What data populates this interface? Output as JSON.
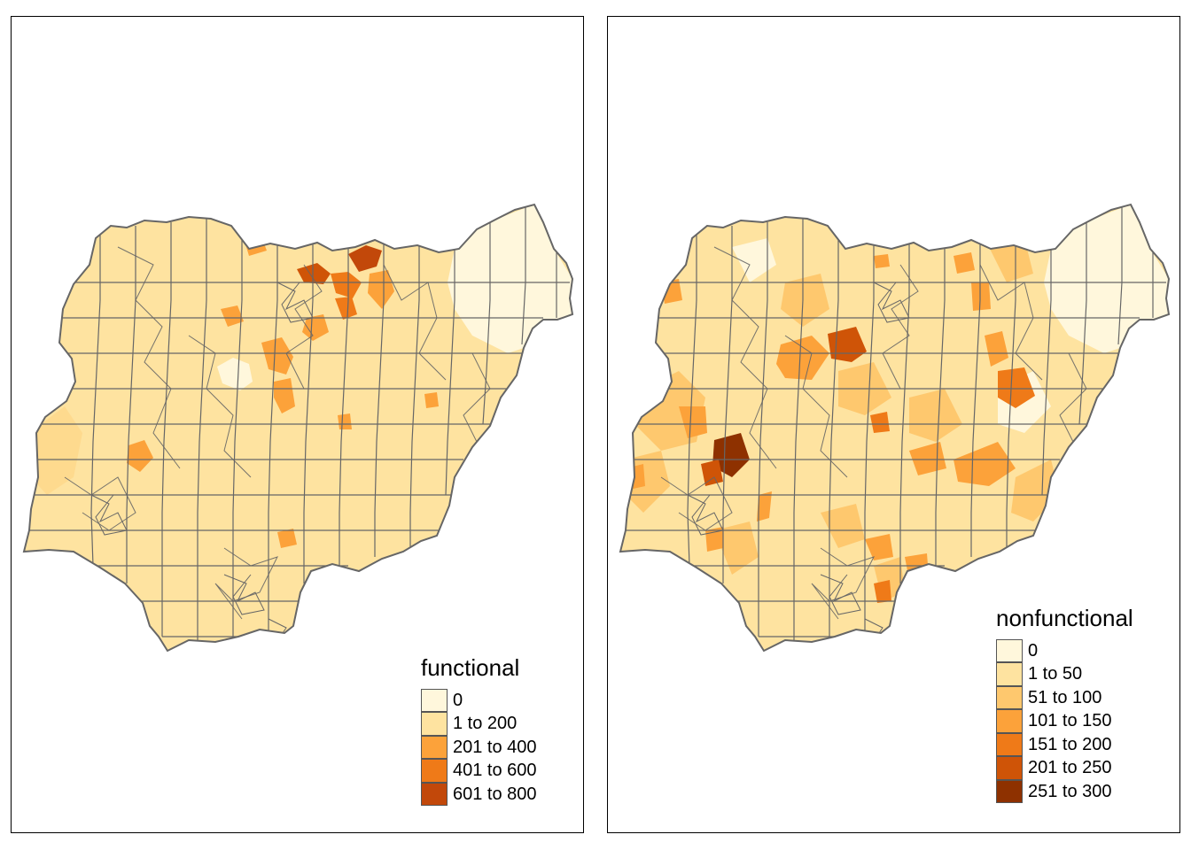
{
  "colors": {
    "outline": "#666666",
    "c0": "#fff7dc",
    "c1": "#fee3a0",
    "c2": "#fec86e",
    "c3": "#fca23a",
    "c4": "#ef7a18",
    "c5": "#cf5407",
    "c6": "#8e3100"
  },
  "panels": [
    {
      "legend": {
        "title": "functional",
        "items": [
          {
            "label": "0",
            "color": "#fff7dc"
          },
          {
            "label": "1 to 200",
            "color": "#fee3a0"
          },
          {
            "label": "201 to 400",
            "color": "#fca23a"
          },
          {
            "label": "401 to 600",
            "color": "#ef7a18"
          },
          {
            "label": "601 to 800",
            "color": "#c2480a"
          }
        ]
      }
    },
    {
      "legend": {
        "title": "nonfunctional",
        "items": [
          {
            "label": "0",
            "color": "#fff7dc"
          },
          {
            "label": "1 to 50",
            "color": "#fee3a0"
          },
          {
            "label": "51 to 100",
            "color": "#fec86e"
          },
          {
            "label": "101 to 150",
            "color": "#fca23a"
          },
          {
            "label": "151 to 200",
            "color": "#ef7a18"
          },
          {
            "label": "201 to 250",
            "color": "#cf5407"
          },
          {
            "label": "251 to 300",
            "color": "#8e3100"
          }
        ]
      }
    }
  ]
}
